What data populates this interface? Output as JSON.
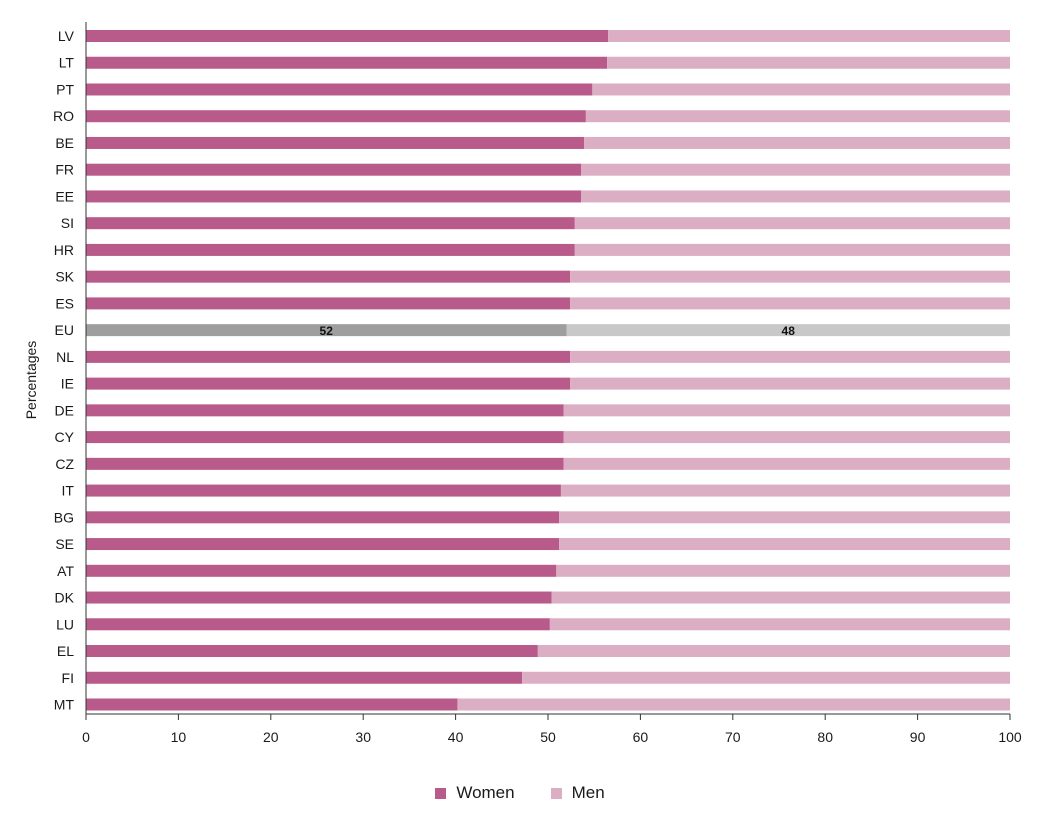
{
  "chart_data": {
    "type": "bar",
    "orientation": "horizontal",
    "stacked": true,
    "ylabel": "Percentages",
    "xlim": [
      0,
      100
    ],
    "x_ticks": [
      0,
      10,
      20,
      30,
      40,
      50,
      60,
      70,
      80,
      90,
      100
    ],
    "categories": [
      "LV",
      "LT",
      "PT",
      "RO",
      "BE",
      "FR",
      "EE",
      "SI",
      "HR",
      "SK",
      "ES",
      "EU",
      "NL",
      "IE",
      "DE",
      "CY",
      "CZ",
      "IT",
      "BG",
      "SE",
      "AT",
      "DK",
      "LU",
      "EL",
      "FI",
      "MT"
    ],
    "series": [
      {
        "name": "Women",
        "color": "#b85a8a",
        "values": [
          56.5,
          56.4,
          54.8,
          54.1,
          53.9,
          53.6,
          53.6,
          52.9,
          52.9,
          52.4,
          52.4,
          52,
          52.4,
          52.4,
          51.7,
          51.7,
          51.7,
          51.4,
          51.2,
          51.2,
          50.9,
          50.4,
          50.2,
          48.9,
          47.2,
          40.2
        ]
      },
      {
        "name": "Men",
        "color": "#dcaec3",
        "values": [
          43.5,
          43.6,
          45.2,
          45.9,
          46.1,
          46.4,
          46.4,
          47.1,
          47.1,
          47.6,
          47.6,
          48,
          47.6,
          47.6,
          48.3,
          48.3,
          48.3,
          48.6,
          48.8,
          48.8,
          49.1,
          49.6,
          49.8,
          51.1,
          52.8,
          59.8
        ]
      }
    ],
    "highlight": {
      "category": "EU",
      "women_color": "#9e9e9e",
      "men_color": "#c8c8c8",
      "labels": [
        "52",
        "48"
      ]
    },
    "grid": false,
    "legend": "bottom-center"
  }
}
